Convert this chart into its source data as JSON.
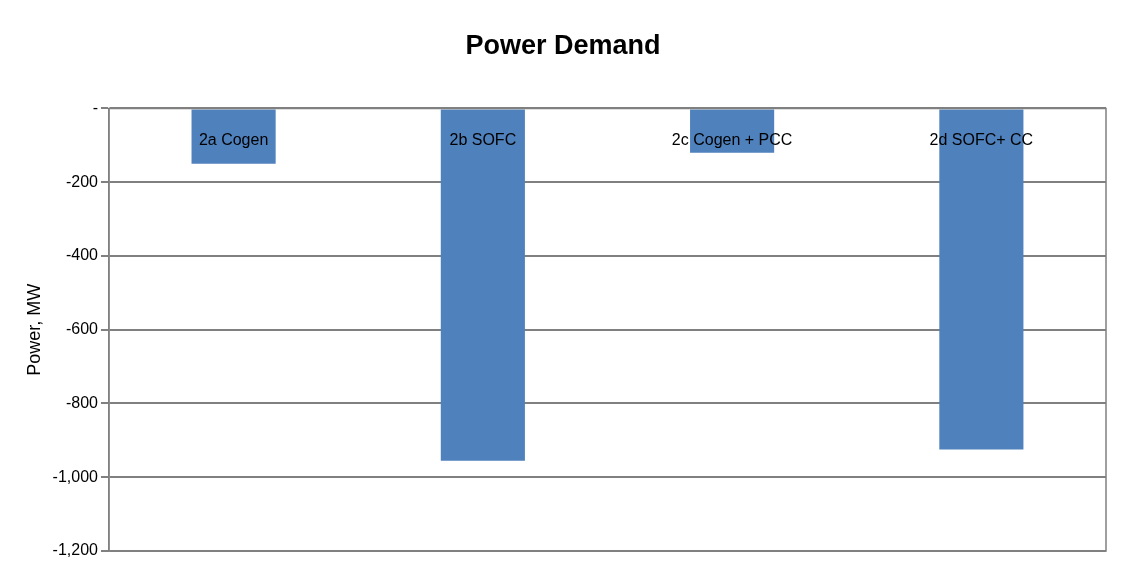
{
  "chart_data": {
    "type": "bar",
    "title": "Power Demand",
    "ylabel": "Power, MW",
    "categories": [
      "2a Cogen",
      "2b SOFC",
      "2c Cogen + PCC",
      "2d SOFC+ CC"
    ],
    "values": [
      -150,
      -955,
      -120,
      -925
    ],
    "color": "#4f81bd",
    "ylim": [
      -1200,
      0
    ],
    "yticks": [
      {
        "value": 0,
        "label": "-"
      },
      -200,
      -400,
      -600,
      -800,
      {
        "value": -1000,
        "label": "-1,000"
      },
      {
        "value": -1200,
        "label": "-1,200"
      }
    ],
    "grid": "y",
    "legend": false
  }
}
